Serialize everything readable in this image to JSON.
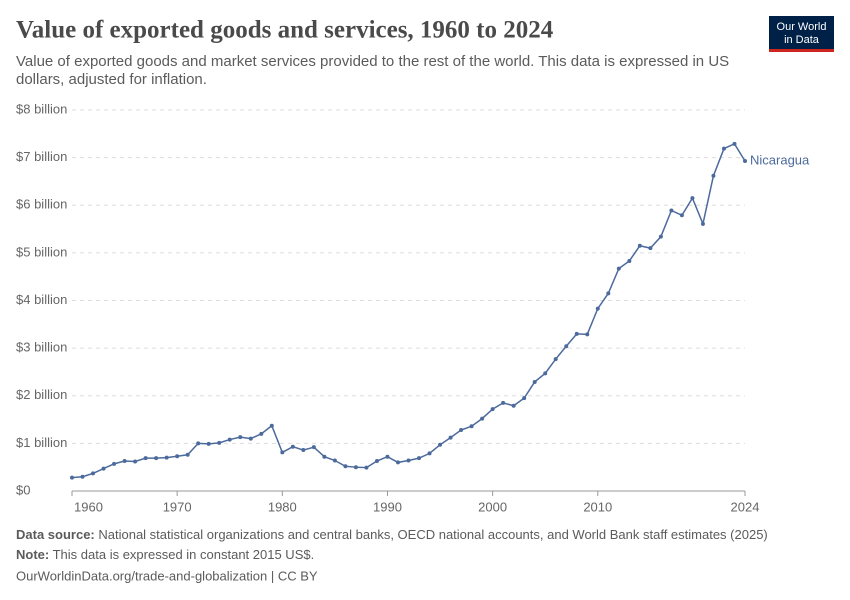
{
  "chart_data": {
    "type": "line",
    "title": "Value of exported goods and services, 1960 to 2024",
    "subtitle_lines": [
      "Value of exported goods and market services provided to the rest of the world. This data is expressed in US",
      "dollars, adjusted for inflation."
    ],
    "logo_lines": [
      "Our World",
      "in Data"
    ],
    "x": [
      1960,
      1961,
      1962,
      1963,
      1964,
      1965,
      1966,
      1967,
      1968,
      1969,
      1970,
      1971,
      1972,
      1973,
      1974,
      1975,
      1976,
      1977,
      1978,
      1979,
      1980,
      1981,
      1982,
      1983,
      1984,
      1985,
      1986,
      1987,
      1988,
      1989,
      1990,
      1991,
      1992,
      1993,
      1994,
      1995,
      1996,
      1997,
      1998,
      1999,
      2000,
      2001,
      2002,
      2003,
      2004,
      2005,
      2006,
      2007,
      2008,
      2009,
      2010,
      2011,
      2012,
      2013,
      2014,
      2015,
      2016,
      2017,
      2018,
      2019,
      2020,
      2021,
      2022,
      2023,
      2024
    ],
    "series": [
      {
        "name": "Nicaragua",
        "color": "#4c6a9c",
        "values": [
          280000000,
          300000000,
          370000000,
          470000000,
          570000000,
          630000000,
          620000000,
          690000000,
          690000000,
          700000000,
          730000000,
          760000000,
          1000000000,
          990000000,
          1010000000,
          1080000000,
          1130000000,
          1100000000,
          1200000000,
          1370000000,
          810000000,
          930000000,
          860000000,
          920000000,
          720000000,
          640000000,
          520000000,
          500000000,
          490000000,
          630000000,
          720000000,
          600000000,
          640000000,
          690000000,
          790000000,
          970000000,
          1120000000,
          1280000000,
          1360000000,
          1520000000,
          1720000000,
          1850000000,
          1790000000,
          1950000000,
          2290000000,
          2470000000,
          2770000000,
          3040000000,
          3300000000,
          3290000000,
          3830000000,
          4150000000,
          4670000000,
          4830000000,
          5150000000,
          5100000000,
          5340000000,
          5890000000,
          5790000000,
          6150000000,
          5610000000,
          6620000000,
          7190000000,
          7290000000,
          6930000000
        ]
      }
    ],
    "xlim": [
      1960,
      2024
    ],
    "xticks": [
      1960,
      1970,
      1980,
      1990,
      2000,
      2010,
      2024
    ],
    "ylim": [
      0,
      8000000000
    ],
    "yticks": [
      {
        "value": 0,
        "label": "$0"
      },
      {
        "value": 1000000000,
        "label": "$1 billion"
      },
      {
        "value": 2000000000,
        "label": "$2 billion"
      },
      {
        "value": 3000000000,
        "label": "$3 billion"
      },
      {
        "value": 4000000000,
        "label": "$4 billion"
      },
      {
        "value": 5000000000,
        "label": "$5 billion"
      },
      {
        "value": 6000000000,
        "label": "$6 billion"
      },
      {
        "value": 7000000000,
        "label": "$7 billion"
      },
      {
        "value": 8000000000,
        "label": "$8 billion"
      }
    ],
    "grid": true,
    "source_label": "Data source:",
    "source": "National statistical organizations and central banks, OECD national accounts, and World Bank staff estimates (2025)",
    "note_label": "Note:",
    "note": "This data is expressed in constant 2015 US$.",
    "url": "OurWorldinData.org/trade-and-globalization | CC BY"
  }
}
